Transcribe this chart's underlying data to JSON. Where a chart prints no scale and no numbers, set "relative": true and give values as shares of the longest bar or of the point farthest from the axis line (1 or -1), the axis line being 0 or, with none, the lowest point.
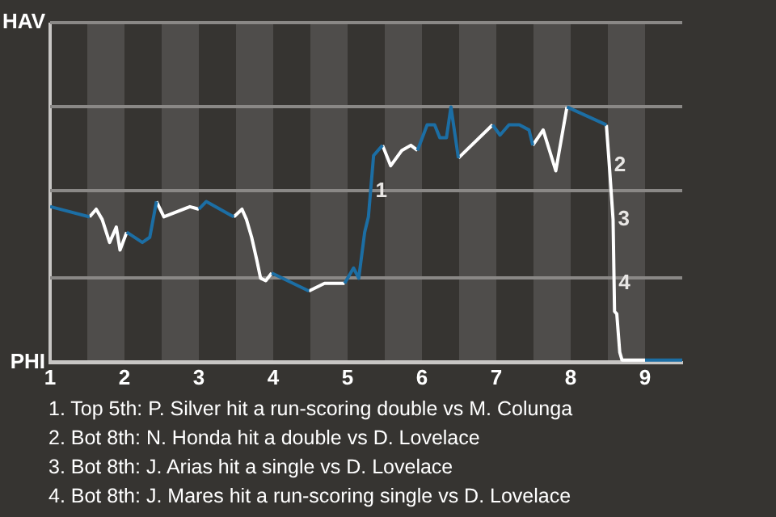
{
  "chart_data": {
    "type": "line",
    "series": [
      {
        "color": "#1c6ea4",
        "x": [
          1,
          1.53,
          null,
          2.03,
          2.24,
          2.34,
          2.43,
          null,
          3,
          3.1,
          3.47,
          null,
          3.98,
          4.48,
          null,
          4.96,
          5.08,
          5.15,
          5.23,
          5.28,
          5.35,
          5.47,
          null,
          5.94,
          6.07,
          6.17,
          6.24,
          6.33,
          6.39,
          6.49,
          null,
          6.95,
          7.05,
          7.17,
          7.31,
          7.44,
          7.49,
          null,
          7.95,
          8.48,
          null,
          9,
          9.5
        ],
        "values": [
          0.61,
          0.57,
          null,
          0.51,
          0.47,
          0.49,
          0.63,
          null,
          0.6,
          0.63,
          0.57,
          null,
          0.35,
          0.28,
          null,
          0.31,
          0.37,
          0.33,
          0.51,
          0.57,
          0.81,
          0.85,
          null,
          0.83,
          0.93,
          0.93,
          0.88,
          0.88,
          1,
          0.8,
          null,
          0.93,
          0.89,
          0.93,
          0.93,
          0.91,
          0.85,
          null,
          1,
          0.93,
          null,
          0.01,
          0.01
        ]
      },
      {
        "color": "#ffffff",
        "x": [
          1.53,
          1.62,
          1.7,
          1.8,
          1.89,
          1.94,
          2.03,
          null,
          2.43,
          2.53,
          2.88,
          3,
          null,
          3.47,
          3.58,
          3.64,
          3.71,
          3.78,
          3.83,
          3.9,
          3.98,
          null,
          4.48,
          4.69,
          4.96,
          null,
          5.47,
          5.58,
          5.73,
          5.85,
          5.94,
          null,
          6.49,
          6.95,
          null,
          7.49,
          7.63,
          7.8,
          7.95,
          null,
          8.48,
          8.52,
          8.57,
          8.59,
          8.62,
          8.66,
          8.69,
          8.88,
          9
        ],
        "values": [
          0.57,
          0.6,
          0.56,
          0.47,
          0.53,
          0.44,
          0.51,
          null,
          0.63,
          0.57,
          0.61,
          0.6,
          null,
          0.57,
          0.6,
          0.56,
          0.49,
          0.4,
          0.33,
          0.32,
          0.35,
          null,
          0.28,
          0.31,
          0.31,
          null,
          0.85,
          0.77,
          0.83,
          0.85,
          0.83,
          null,
          0.8,
          0.93,
          null,
          0.85,
          0.91,
          0.75,
          1,
          null,
          0.93,
          0.77,
          0.56,
          0.2,
          0.19,
          0.04,
          0.01,
          0.01,
          0.01
        ]
      }
    ],
    "relative": true,
    "xlim": [
      1,
      9.5
    ],
    "xticks": [
      1,
      2,
      3,
      4,
      5,
      6,
      7,
      8,
      9
    ],
    "legend": false,
    "marker": "none",
    "line_style": "solid",
    "ref_lines": [
      {
        "axis": "y",
        "value": 0,
        "label": "PHI",
        "color": "#c8c6c4"
      },
      {
        "axis": "y",
        "value": 0.33,
        "label": null,
        "color": "#8a8886"
      },
      {
        "axis": "y",
        "value": 0.67,
        "label": null,
        "color": "#8a8886"
      },
      {
        "axis": "y",
        "value": 1,
        "label": null,
        "color": "#8a8886"
      },
      {
        "axis": "y",
        "value": 1.33,
        "label": "HAV",
        "color": "#8a8886"
      }
    ],
    "bands": [
      {
        "axis": "x",
        "from": 1.5,
        "to": 2,
        "color": "#4f4d4b"
      },
      {
        "axis": "x",
        "from": 2.5,
        "to": 3,
        "color": "#4f4d4b"
      },
      {
        "axis": "x",
        "from": 3.5,
        "to": 4,
        "color": "#4f4d4b"
      },
      {
        "axis": "x",
        "from": 4.5,
        "to": 5,
        "color": "#4f4d4b"
      },
      {
        "axis": "x",
        "from": 5.5,
        "to": 6,
        "color": "#4f4d4b"
      },
      {
        "axis": "x",
        "from": 6.5,
        "to": 7,
        "color": "#4f4d4b"
      },
      {
        "axis": "x",
        "from": 7.5,
        "to": 8,
        "color": "#4f4d4b"
      },
      {
        "axis": "x",
        "from": 8.5,
        "to": 9,
        "color": "#4f4d4b"
      }
    ],
    "annotations": [
      {
        "text": "1",
        "x": 5.31,
        "y": 0.67
      },
      {
        "text": "2",
        "x": 8.52,
        "y": 0.77
      },
      {
        "text": "3",
        "x": 8.57,
        "y": 0.56
      },
      {
        "text": "4",
        "x": 8.58,
        "y": 0.31
      },
      "1. Top 5th: P. Silver hit a run-scoring double vs M. Colunga",
      "2. Bot 8th: N. Honda hit a double vs D. Lovelace",
      "3. Bot 8th: J. Arias hit a single vs D. Lovelace",
      "4. Bot 8th: J. Mares hit a run-scoring single vs D. Lovelace"
    ]
  }
}
